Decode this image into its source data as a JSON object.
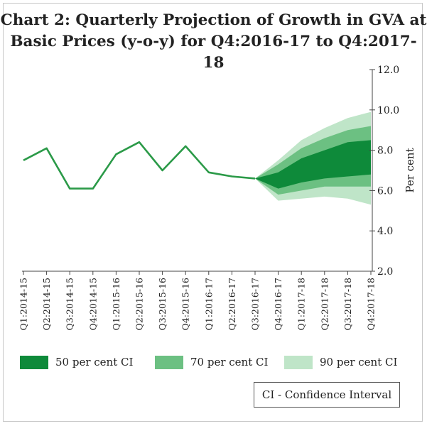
{
  "title_line1": "Chart 2: Quarterly Projection of Growth in GVA at",
  "title_line2": "Basic Prices (y-o-y) for Q4:2016-17 to Q4:2017-18",
  "colors": {
    "line": "#2b9a48",
    "ci50": "#0e8a3a",
    "ci70": "#6cc082",
    "ci90": "#bfe5c8",
    "axis": "#444444",
    "text": "#222222"
  },
  "legend": {
    "ci50": "50 per cent CI",
    "ci70": "70 per cent CI",
    "ci90": "90 per cent CI"
  },
  "note": "CI - Confidence Interval",
  "chart_data": {
    "type": "line",
    "title": "Chart 2: Quarterly Projection of Growth in GVA at Basic Prices (y-o-y) for Q4:2016-17 to Q4:2017-18",
    "ylabel": "Per cent",
    "yaxis_position": "right",
    "ylim": [
      2.0,
      12.0
    ],
    "yticks": [
      "2.0",
      "4.0",
      "6.0",
      "8.0",
      "10.0",
      "12.0"
    ],
    "grid": false,
    "legend_position": "bottom",
    "categories": [
      "Q1:2014-15",
      "Q2:2014-15",
      "Q3:2014-15",
      "Q4:2014-15",
      "Q1:2015-16",
      "Q2:2015-16",
      "Q3:2015-16",
      "Q4:2015-16",
      "Q1:2016-17",
      "Q2:2016-17",
      "Q3:2016-17",
      "Q4:2016-17",
      "Q1:2017-18",
      "Q2:2017-18",
      "Q3:2017-18",
      "Q4:2017-18"
    ],
    "series": [
      {
        "values": [
          7.5,
          8.1,
          6.1,
          6.1,
          7.8,
          8.4,
          7.0,
          8.2,
          6.9,
          6.7,
          6.6,
          null,
          null,
          null,
          null,
          null
        ]
      }
    ],
    "fan": {
      "categories": [
        "Q3:2016-17",
        "Q4:2016-17",
        "Q1:2017-18",
        "Q2:2017-18",
        "Q3:2017-18",
        "Q4:2017-18"
      ],
      "ci50": {
        "name": "50 per cent CI",
        "lower": [
          6.6,
          6.1,
          6.4,
          6.6,
          6.7,
          6.8
        ],
        "upper": [
          6.6,
          6.9,
          7.6,
          8.0,
          8.4,
          8.5
        ]
      },
      "ci70": {
        "name": "70 per cent CI",
        "lower": [
          6.6,
          5.8,
          6.0,
          6.2,
          6.2,
          6.2
        ],
        "upper": [
          6.6,
          7.3,
          8.1,
          8.6,
          9.0,
          9.2
        ]
      },
      "ci90": {
        "name": "90 per cent CI",
        "lower": [
          6.6,
          5.5,
          5.6,
          5.7,
          5.6,
          5.3
        ],
        "upper": [
          6.6,
          7.5,
          8.5,
          9.1,
          9.6,
          9.9
        ]
      }
    }
  }
}
